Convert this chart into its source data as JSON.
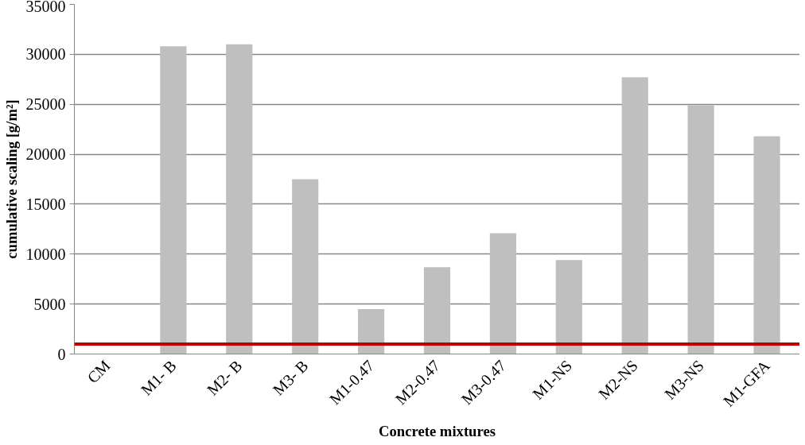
{
  "chart_data": {
    "type": "bar",
    "xlabel": "Concrete mixtures",
    "ylabel": "cumulative scaling [g/m²]",
    "categories": [
      "CM",
      "M1- B",
      "M2- B",
      "M3- B",
      "M1-0.47",
      "M2-0.47",
      "M3-0.47",
      "M1-NS",
      "M2-NS",
      "M3-NS",
      "M1-GFA"
    ],
    "values": [
      0,
      30800,
      31000,
      17500,
      4500,
      8700,
      12100,
      9400,
      27700,
      24900,
      21800
    ],
    "color": "#bfbfbf",
    "ylim": [
      0,
      35000
    ],
    "yticks": [
      0,
      5000,
      10000,
      15000,
      20000,
      25000,
      30000,
      35000
    ],
    "grid": "y",
    "ref_lines": [
      {
        "axis": "y",
        "value": 1000,
        "color": "#c00000"
      }
    ]
  }
}
